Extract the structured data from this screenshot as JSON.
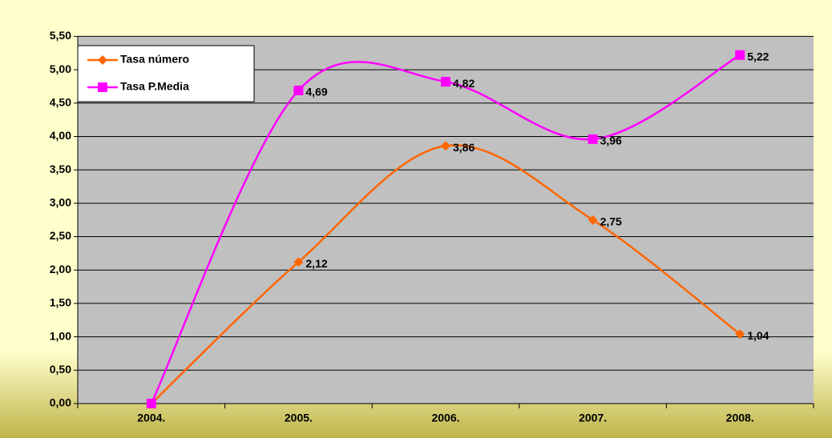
{
  "chart_data": {
    "type": "line",
    "categories": [
      "2004.",
      "2005.",
      "2006.",
      "2007.",
      "2008."
    ],
    "series": [
      {
        "name": "Tasa número",
        "color": "#ff6600",
        "marker": "diamond",
        "values": [
          0,
          2.12,
          3.86,
          2.75,
          1.04
        ],
        "value_labels": [
          null,
          "2,12",
          "3,86",
          "2,75",
          "1,04"
        ]
      },
      {
        "name": "Tasa P.Media",
        "color": "#ff00ff",
        "marker": "square",
        "values": [
          0,
          4.69,
          4.82,
          3.96,
          5.22
        ],
        "value_labels": [
          null,
          "4,69",
          "4,82",
          "3,96",
          "5,22"
        ]
      }
    ],
    "smooth": true,
    "ylim": [
      0,
      5.5
    ],
    "yticks": [
      {
        "value": 0,
        "label": "0,00"
      },
      {
        "value": 0.5,
        "label": "0,50"
      },
      {
        "value": 1,
        "label": "1,00"
      },
      {
        "value": 1.5,
        "label": "1,50"
      },
      {
        "value": 2,
        "label": "2,00"
      },
      {
        "value": 2.5,
        "label": "2,50"
      },
      {
        "value": 3,
        "label": "3,00"
      },
      {
        "value": 3.5,
        "label": "3,50"
      },
      {
        "value": 4,
        "label": "4,00"
      },
      {
        "value": 4.5,
        "label": "4,50"
      },
      {
        "value": 5,
        "label": "5,00"
      },
      {
        "value": 5.5,
        "label": "5,50"
      }
    ],
    "grid": true,
    "legend": "top-left"
  }
}
